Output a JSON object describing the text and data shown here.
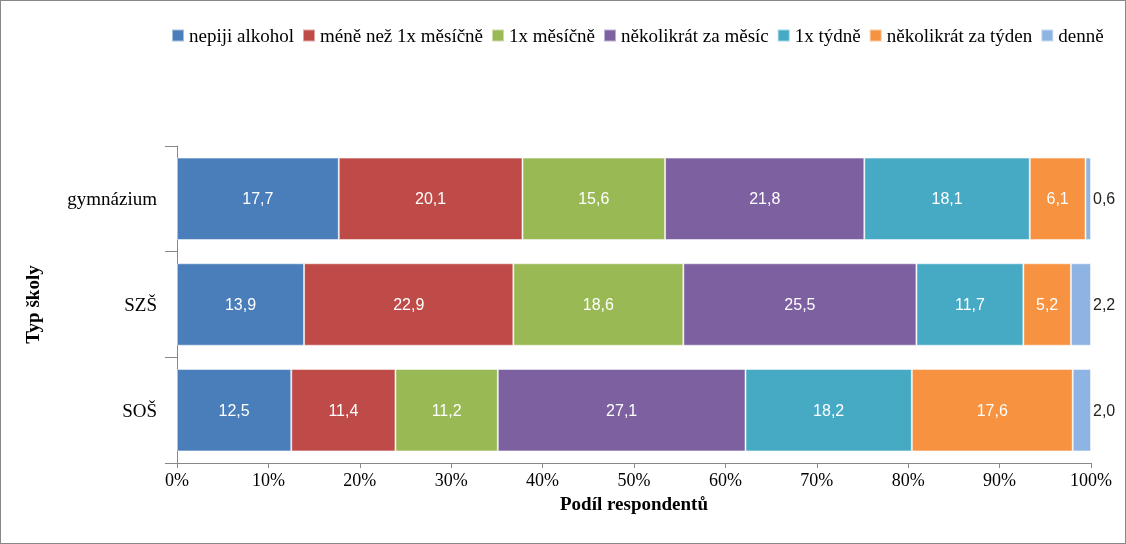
{
  "chart_data": {
    "type": "bar",
    "orientation": "horizontal",
    "stacked": true,
    "xlabel": "Podíl respondentů",
    "ylabel": "Typ školy",
    "categories": [
      "gymnázium",
      "SZŠ",
      "SOŠ"
    ],
    "xlim": [
      0,
      100
    ],
    "xticks": [
      {
        "value": 0,
        "label": "0%"
      },
      {
        "value": 10,
        "label": "10%"
      },
      {
        "value": 20,
        "label": "20%"
      },
      {
        "value": 30,
        "label": "30%"
      },
      {
        "value": 40,
        "label": "40%"
      },
      {
        "value": 50,
        "label": "50%"
      },
      {
        "value": 60,
        "label": "60%"
      },
      {
        "value": 70,
        "label": "70%"
      },
      {
        "value": 80,
        "label": "80%"
      },
      {
        "value": 90,
        "label": "90%"
      },
      {
        "value": 100,
        "label": "100%"
      }
    ],
    "grid": false,
    "legend": "top",
    "series": [
      {
        "name": "nepiji alkohol",
        "color": "#4a7ebb",
        "values": [
          17.7,
          13.9,
          12.5
        ],
        "value_labels": [
          "17,7",
          "13,9",
          "12,5"
        ]
      },
      {
        "name": "méně než 1x měsíčně",
        "color": "#be4b48",
        "values": [
          20.1,
          22.9,
          11.4
        ],
        "value_labels": [
          "20,1",
          "22,9",
          "11,4"
        ]
      },
      {
        "name": "1x měsíčně",
        "color": "#98b954",
        "values": [
          15.6,
          18.6,
          11.2
        ],
        "value_labels": [
          "15,6",
          "18,6",
          "11,2"
        ]
      },
      {
        "name": "několikrát za měsíc",
        "color": "#7d60a0",
        "values": [
          21.8,
          25.5,
          27.1
        ],
        "value_labels": [
          "21,8",
          "25,5",
          "27,1"
        ]
      },
      {
        "name": "1x týdně",
        "color": "#46aac5",
        "values": [
          18.1,
          11.7,
          18.2
        ],
        "value_labels": [
          "18,1",
          "11,7",
          "18,2"
        ]
      },
      {
        "name": "několikrát za týden",
        "color": "#f69240",
        "values": [
          6.1,
          5.2,
          17.6
        ],
        "value_labels": [
          "6,1",
          "5,2",
          "17,6"
        ]
      },
      {
        "name": "denně",
        "color": "#8eb4e3",
        "values": [
          0.6,
          2.2,
          2.0
        ],
        "value_labels": [
          "0,6",
          "2,2",
          "2,0"
        ]
      }
    ]
  }
}
